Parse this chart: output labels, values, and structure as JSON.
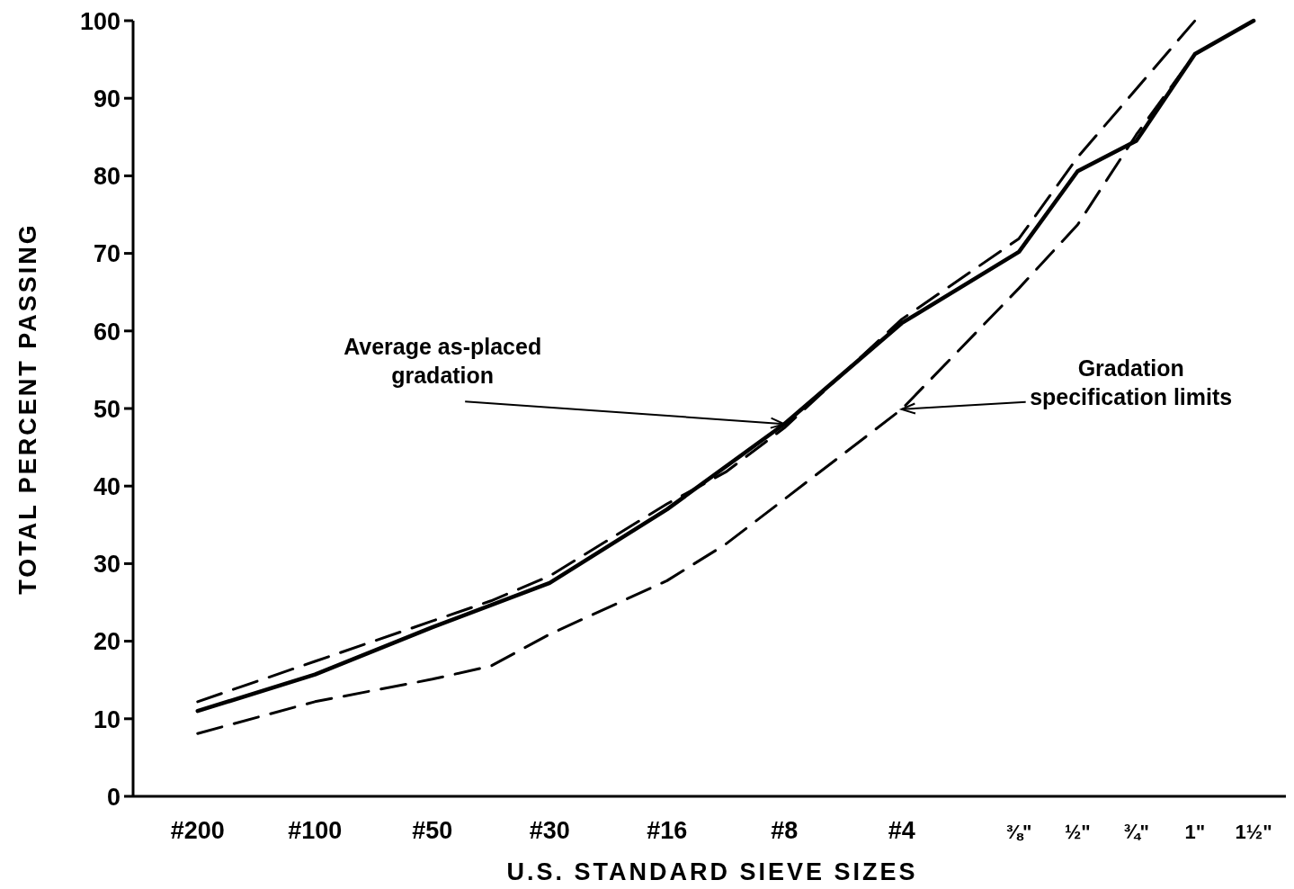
{
  "chart_data": {
    "type": "line",
    "xlabel": "U.S. STANDARD SIEVE SIZES",
    "ylabel": "TOTAL PERCENT PASSING",
    "categories": [
      "#200",
      null,
      "#100",
      null,
      "#50",
      null,
      "#30",
      null,
      "#16",
      null,
      "#8",
      null,
      "#4",
      null,
      "⅜\"",
      "½\"",
      "¾\"",
      "1\"",
      "1½\""
    ],
    "ylim": [
      0,
      100
    ],
    "yticks": [
      0,
      10,
      20,
      30,
      40,
      50,
      60,
      70,
      80,
      90,
      100
    ],
    "series": [
      {
        "color": "#000000",
        "line_style": "solid",
        "values": [
          11,
          null,
          15.7,
          null,
          21.8,
          null,
          27.5,
          null,
          37,
          null,
          48,
          null,
          61,
          null,
          70.2,
          80.6,
          84.5,
          95.7,
          100
        ]
      },
      {
        "color": "#000000",
        "line_style": "dashed",
        "values": [
          12.2,
          null,
          17.4,
          null,
          22.6,
          25.2,
          28.4,
          null,
          37.7,
          41.8,
          47.5,
          null,
          61.5,
          null,
          71.9,
          82.4,
          null,
          100,
          null
        ]
      },
      {
        "color": "#000000",
        "line_style": "dashed",
        "values": [
          8.1,
          null,
          12.2,
          null,
          15.1,
          16.8,
          20.9,
          null,
          27.8,
          32.5,
          null,
          null,
          49.9,
          null,
          65.5,
          73.7,
          85.3,
          95.7,
          100
        ]
      }
    ],
    "annotations": [
      {
        "text": "Average as-placed\ngradation",
        "x": "#8",
        "y": 48
      },
      {
        "text": "Gradation\nspecification limits",
        "x": "#4",
        "y": 49.9
      }
    ]
  }
}
